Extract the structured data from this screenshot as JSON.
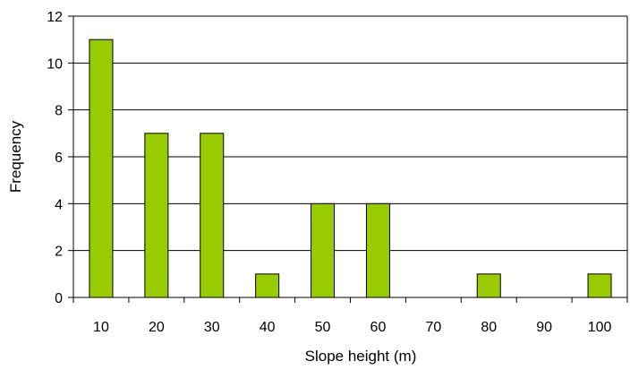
{
  "chart_data": {
    "type": "bar",
    "title": "",
    "xlabel": "Slope height (m)",
    "ylabel": "Frequency",
    "categories": [
      "10",
      "20",
      "30",
      "40",
      "50",
      "60",
      "70",
      "80",
      "90",
      "100"
    ],
    "values": [
      11,
      7,
      7,
      1,
      4,
      4,
      0,
      1,
      0,
      1
    ],
    "ylim": [
      0,
      12
    ],
    "yticks": [
      "0",
      "2",
      "4",
      "6",
      "8",
      "10",
      "12"
    ],
    "grid": true,
    "legend": "none",
    "bar_color": "#99cc00",
    "bar_edge_color": "#000000",
    "gridline_color": "#000000"
  }
}
